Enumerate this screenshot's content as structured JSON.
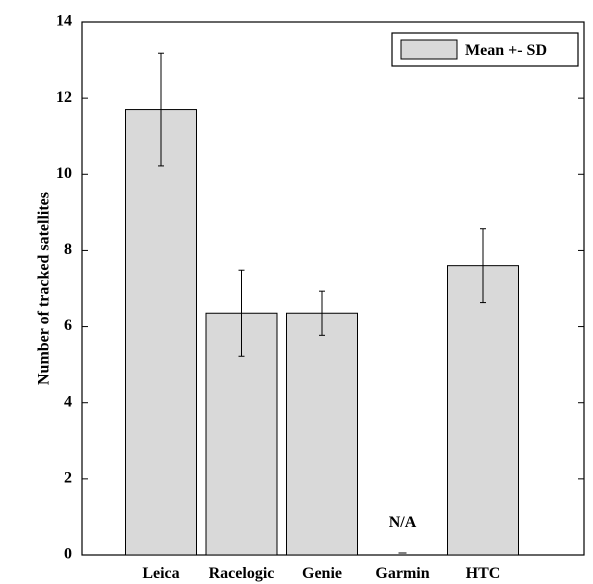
{
  "chart_data": {
    "type": "bar",
    "title": "",
    "xlabel": "",
    "ylabel": "Number of tracked satellites",
    "ylim": [
      0,
      14
    ],
    "yticks": [
      0,
      2,
      4,
      6,
      8,
      10,
      12,
      14
    ],
    "grid": false,
    "legend": {
      "position": "top-right",
      "entries": [
        "Mean +- SD"
      ]
    },
    "categories": [
      "Leica",
      "Racelogic",
      "Genie",
      "Garmin",
      "HTC"
    ],
    "series": [
      {
        "name": "Mean +- SD",
        "values": [
          11.7,
          6.35,
          6.35,
          null,
          7.6
        ],
        "sd": [
          1.48,
          1.13,
          0.58,
          null,
          0.97
        ]
      }
    ],
    "annotations": [
      {
        "category": "Garmin",
        "text": "N/A"
      }
    ],
    "colors": {
      "bar_fill": "#d9d9d9",
      "bar_stroke": "#000000"
    }
  }
}
